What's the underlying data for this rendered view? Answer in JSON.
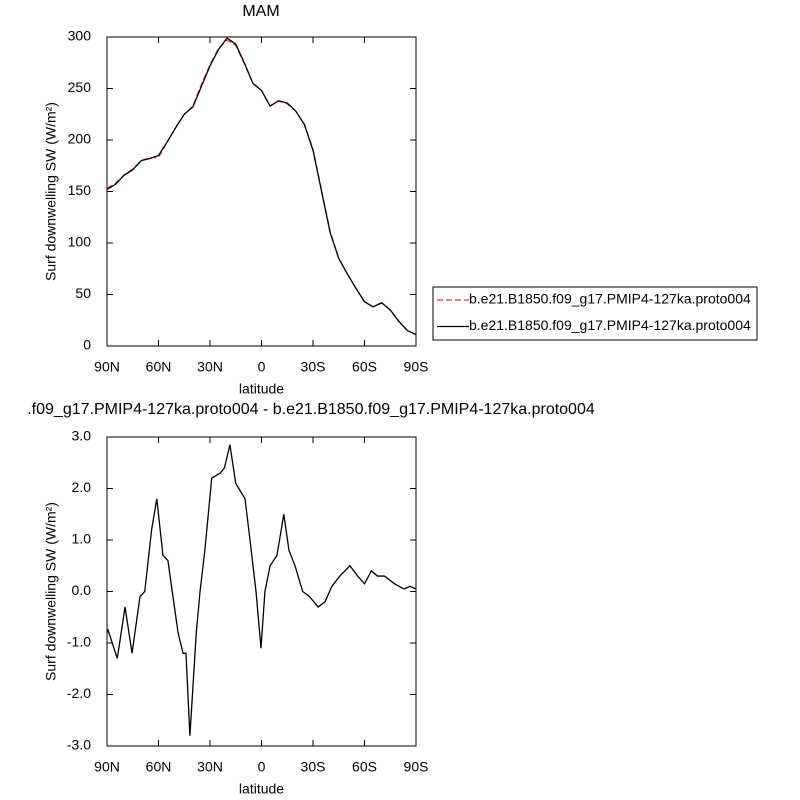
{
  "chart_data": [
    {
      "type": "line",
      "title": "MAM",
      "xlabel": "latitude",
      "ylabel": "Surf downwelling SW (W/m²)",
      "x": [
        90,
        85,
        80,
        75,
        70,
        65,
        60,
        55,
        50,
        45,
        40,
        35,
        30,
        25,
        20,
        15,
        10,
        5,
        0,
        -5,
        -10,
        -15,
        -20,
        -25,
        -30,
        -35,
        -40,
        -45,
        -50,
        -55,
        -60,
        -65,
        -70,
        -75,
        -80,
        -85,
        -90
      ],
      "series": [
        {
          "name": "b.e21.B1850.f09_g17.PMIP4-127ka.proto004",
          "color": "#e8323c",
          "dash": true,
          "values": [
            153,
            158,
            166,
            172,
            180,
            183,
            183,
            198,
            212,
            225,
            233,
            254,
            273,
            289,
            297,
            292,
            274,
            255,
            248,
            233,
            238,
            235,
            228,
            215,
            191,
            151,
            111,
            85,
            70,
            56,
            43,
            38,
            42,
            35,
            24,
            15,
            11
          ]
        },
        {
          "name": "b.e21.B1850.f09_g17.PMIP4-127ka.proto004",
          "color": "#000000",
          "dash": false,
          "values": [
            152,
            157,
            166,
            171,
            180,
            182,
            185,
            198,
            212,
            225,
            232,
            252,
            272,
            288,
            299,
            293,
            275,
            255,
            248,
            233,
            238,
            236,
            228,
            215,
            190,
            150,
            110,
            85,
            70,
            56,
            43,
            38,
            42,
            35,
            24,
            15,
            11
          ]
        }
      ],
      "xlim": [
        90,
        -90
      ],
      "xticks": [
        {
          "value": 90,
          "label": "90N"
        },
        {
          "value": 60,
          "label": "60N"
        },
        {
          "value": 30,
          "label": "30N"
        },
        0,
        {
          "value": -30,
          "label": "30S"
        },
        {
          "value": -60,
          "label": "60S"
        },
        {
          "value": -90,
          "label": "90S"
        }
      ],
      "ylim": [
        0,
        300
      ],
      "yticks": [
        0,
        50,
        100,
        150,
        200,
        250,
        300
      ],
      "legend": "right"
    },
    {
      "type": "line",
      "title": ".f09_g17.PMIP4-127ka.proto004 - b.e21.B1850.f09_g17.PMIP4-127ka.proto004",
      "xlabel": "latitude",
      "ylabel": "Surf downwelling SW (W/m²)",
      "color": "#000000",
      "x": [
        90,
        89.4,
        84,
        79.5,
        75.4,
        70.8,
        68,
        64,
        61,
        57.4,
        54.5,
        52,
        48.6,
        45.7,
        44,
        41.7,
        38,
        35.8,
        33,
        29,
        24,
        21.6,
        18.4,
        15,
        9.6,
        6.7,
        3.2,
        0.3,
        -2,
        -5,
        -9,
        -13,
        -16,
        -19.5,
        -24,
        -28,
        -33,
        -37,
        -41,
        -45.6,
        -51.5,
        -56,
        -60,
        -64,
        -67.6,
        -71.6,
        -77.5,
        -83,
        -86.5,
        -90
      ],
      "values": [
        -0.8,
        -0.75,
        -1.3,
        -0.3,
        -1.2,
        -0.1,
        0.0,
        1.2,
        1.8,
        0.7,
        0.6,
        0.0,
        -0.8,
        -1.2,
        -1.2,
        -2.8,
        -0.8,
        0.0,
        0.8,
        2.2,
        2.3,
        2.4,
        2.85,
        2.1,
        1.8,
        1.0,
        0.0,
        -1.1,
        0.0,
        0.5,
        0.7,
        1.5,
        0.8,
        0.5,
        0.0,
        -0.1,
        -0.3,
        -0.2,
        0.1,
        0.3,
        0.5,
        0.3,
        0.15,
        0.4,
        0.3,
        0.3,
        0.15,
        0.05,
        0.1,
        0.05
      ],
      "xlim": [
        90,
        -90
      ],
      "xticks": [
        {
          "value": 90,
          "label": "90N"
        },
        {
          "value": 60,
          "label": "60N"
        },
        {
          "value": 30,
          "label": "30N"
        },
        0,
        {
          "value": -30,
          "label": "30S"
        },
        {
          "value": -60,
          "label": "60S"
        },
        {
          "value": -90,
          "label": "90S"
        }
      ],
      "ylim": [
        -3,
        3
      ],
      "yticks": [
        {
          "value": -3,
          "label": "-3.0"
        },
        {
          "value": -2,
          "label": "-2.0"
        },
        {
          "value": -1,
          "label": "-1.0"
        },
        {
          "value": 0,
          "label": "0.0"
        },
        {
          "value": 1,
          "label": "1.0"
        },
        {
          "value": 2,
          "label": "2.0"
        },
        {
          "value": 3,
          "label": "3.0"
        }
      ]
    }
  ]
}
